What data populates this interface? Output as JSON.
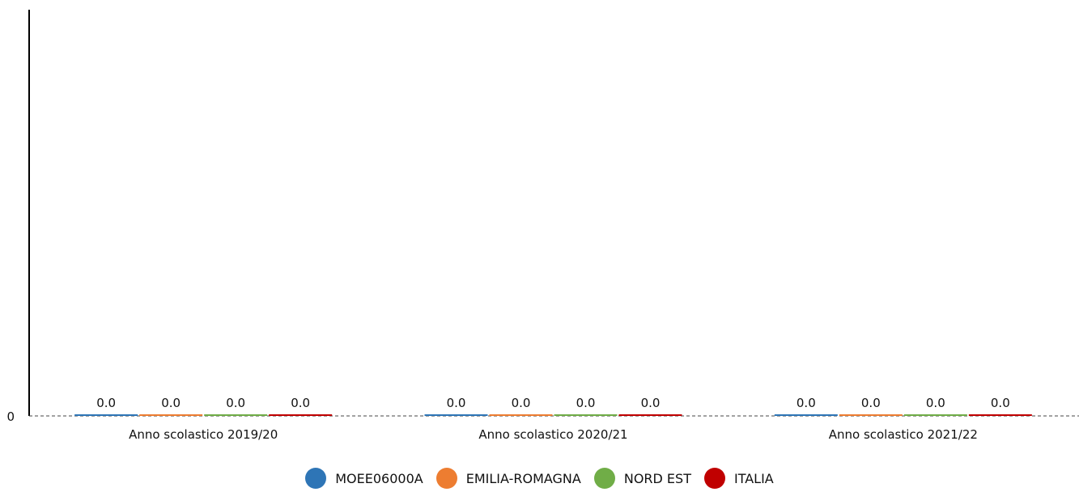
{
  "chart_data": {
    "type": "bar",
    "categories": [
      "Anno scolastico 2019/20",
      "Anno scolastico 2020/21",
      "Anno scolastico 2021/22"
    ],
    "series": [
      {
        "name": "MOEE06000A",
        "color": "#2E75B6",
        "values": [
          0.0,
          0.0,
          0.0
        ],
        "labels": [
          "0.0",
          "0.0",
          "0.0"
        ]
      },
      {
        "name": "EMILIA-ROMAGNA",
        "color": "#ED7D31",
        "values": [
          0.0,
          0.0,
          0.0
        ],
        "labels": [
          "0.0",
          "0.0",
          "0.0"
        ]
      },
      {
        "name": "NORD EST",
        "color": "#70AD47",
        "values": [
          0.0,
          0.0,
          0.0
        ],
        "labels": [
          "0.0",
          "0.0",
          "0.0"
        ]
      },
      {
        "name": "ITALIA",
        "color": "#C00000",
        "values": [
          0.0,
          0.0,
          0.0
        ],
        "labels": [
          "0.0",
          "0.0",
          "0.0"
        ]
      }
    ],
    "y_ticks": [
      "0"
    ],
    "ylim": [
      0,
      1
    ],
    "title": "",
    "xlabel": "",
    "ylabel": "",
    "grid": false,
    "legend_position": "bottom"
  }
}
